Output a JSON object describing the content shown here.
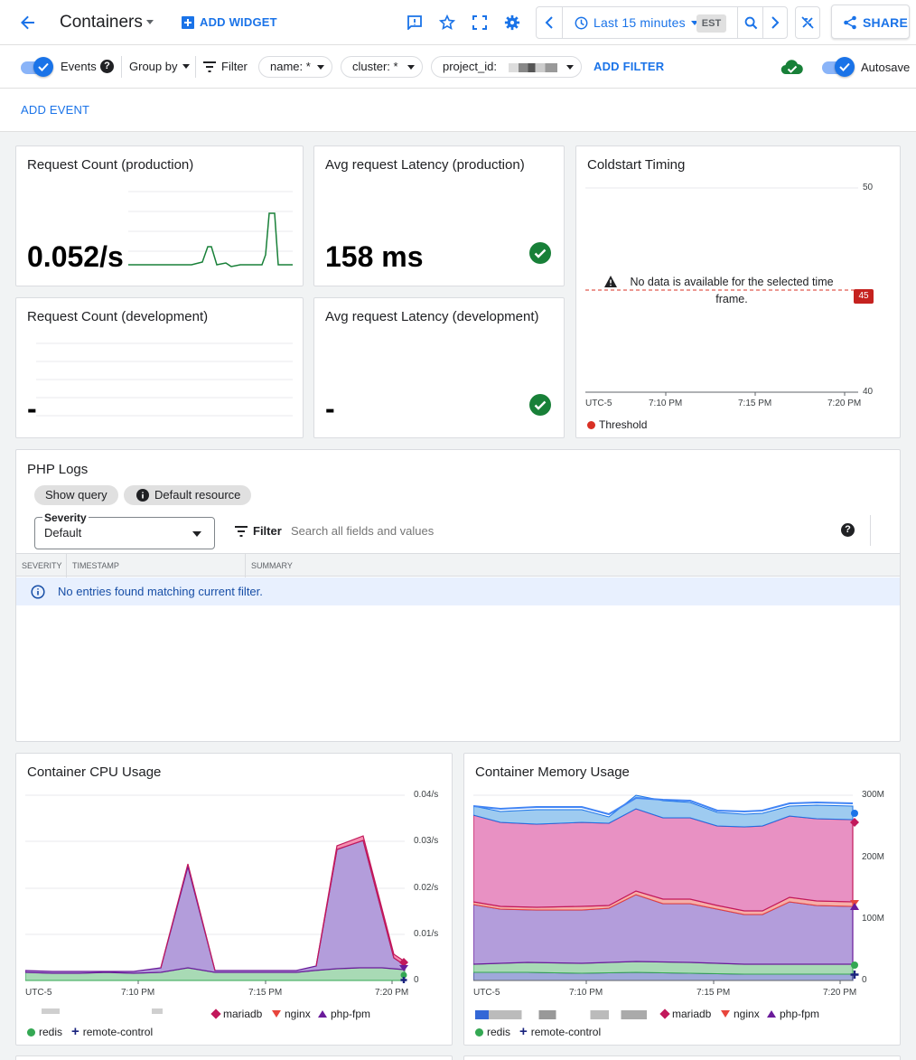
{
  "header": {
    "title": "Containers",
    "add_widget": "ADD WIDGET",
    "time_range": "Last 15 minutes",
    "timezone": "EST",
    "share": "SHARE"
  },
  "filter_bar": {
    "events_label": "Events",
    "group_by": "Group by",
    "filter": "Filter",
    "chips": [
      "name: *",
      "cluster: *",
      "project_id:"
    ],
    "add_filter": "ADD FILTER",
    "autosave": "Autosave"
  },
  "event_bar": {
    "add_event": "ADD EVENT"
  },
  "widgets": {
    "req_prod": {
      "title": "Request Count (production)",
      "value": "0.052/s"
    },
    "lat_prod": {
      "title": "Avg request Latency (production)",
      "value": "158 ms"
    },
    "req_dev": {
      "title": "Request Count (development)",
      "value": "-"
    },
    "lat_dev": {
      "title": "Avg request Latency (development)",
      "value": "-"
    },
    "coldstart": {
      "title": "Coldstart Timing",
      "no_data": "No data is available for the selected time frame.",
      "threshold_badge": "45",
      "y_ticks": [
        "50",
        "40"
      ],
      "x_ticks": [
        "UTC-5",
        "7:10 PM",
        "7:15 PM",
        "7:20 PM"
      ],
      "legend": "Threshold"
    }
  },
  "logs": {
    "title": "PHP Logs",
    "show_query": "Show query",
    "default_resource": "Default resource",
    "severity_label": "Severity",
    "severity_value": "Default",
    "filter": "Filter",
    "search_placeholder": "Search all fields and values",
    "columns": [
      "SEVERITY",
      "TIMESTAMP",
      "SUMMARY"
    ],
    "empty_message": "No entries found matching current filter."
  },
  "cpu": {
    "title": "Container CPU Usage",
    "y_ticks": [
      "0.04/s",
      "0.03/s",
      "0.02/s",
      "0.01/s",
      "0"
    ],
    "x_ticks": [
      "UTC-5",
      "7:10 PM",
      "7:15 PM",
      "7:20 PM"
    ],
    "legend": [
      "mariadb",
      "nginx",
      "php-fpm",
      "redis",
      "remote-control"
    ]
  },
  "memory": {
    "title": "Container Memory Usage",
    "y_ticks": [
      "300M",
      "200M",
      "100M",
      "0"
    ],
    "x_ticks": [
      "UTC-5",
      "7:10 PM",
      "7:15 PM",
      "7:20 PM"
    ],
    "legend": [
      "mariadb",
      "nginx",
      "php-fpm",
      "redis",
      "remote-control"
    ]
  },
  "colors": {
    "accent": "#1a73e8",
    "mariadb": "#c2185b",
    "nginx": "#e8453c",
    "php-fpm": "#6a1b9a",
    "redis": "#34a853",
    "remote-control": "#1a237e",
    "threshold": "#d93025"
  }
}
